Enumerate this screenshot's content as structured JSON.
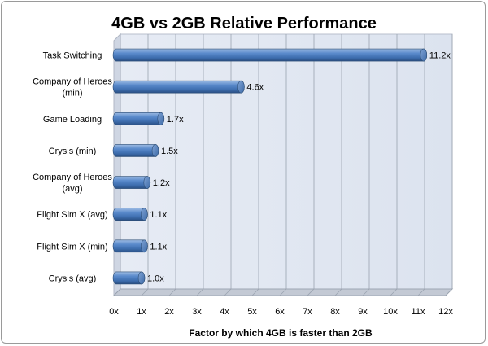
{
  "chart_data": {
    "type": "bar",
    "orientation": "horizontal",
    "title": "4GB vs 2GB Relative Performance",
    "xlabel": "Factor by which 4GB is faster than 2GB",
    "ylabel": "",
    "categories": [
      "Task Switching",
      "Company of Heroes (min)",
      "Game Loading",
      "Crysis (min)",
      "Company of Heroes (avg)",
      "Flight Sim X (avg)",
      "Flight Sim X (min)",
      "Crysis (avg)"
    ],
    "category_lines": [
      [
        "Task Switching"
      ],
      [
        "Company of Heroes",
        "(min)"
      ],
      [
        "Game Loading"
      ],
      [
        "Crysis (min)"
      ],
      [
        "Company of Heroes",
        "(avg)"
      ],
      [
        "Flight Sim X (avg)"
      ],
      [
        "Flight Sim X (min)"
      ],
      [
        "Crysis (avg)"
      ]
    ],
    "values": [
      11.2,
      4.6,
      1.7,
      1.5,
      1.2,
      1.1,
      1.1,
      1.0
    ],
    "data_labels": [
      "11.2x",
      "4.6x",
      "1.7x",
      "1.5x",
      "1.2x",
      "1.1x",
      "1.1x",
      "1.0x"
    ],
    "x_ticks": [
      0,
      1,
      2,
      3,
      4,
      5,
      6,
      7,
      8,
      9,
      10,
      11,
      12
    ],
    "x_tick_labels": [
      "0x",
      "1x",
      "2x",
      "3x",
      "4x",
      "5x",
      "6x",
      "7x",
      "8x",
      "9x",
      "10x",
      "11x",
      "12x"
    ],
    "xlim": [
      0,
      12
    ],
    "grid": "vertical",
    "legend": "none",
    "style": "3d-cylinder",
    "colors": {
      "bar": "#4f81bd",
      "bar_dark": "#2c4d75",
      "bar_light": "#a9c4e6",
      "wall": "#dfe6f2",
      "floor": "#c3c9d4",
      "grid": "#9aa3b0",
      "text": "#000000"
    }
  }
}
